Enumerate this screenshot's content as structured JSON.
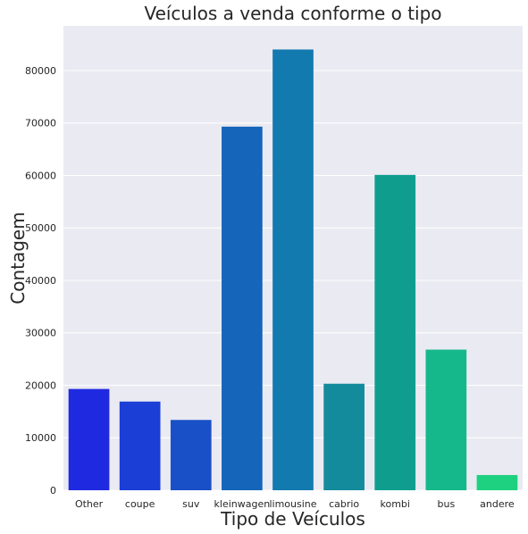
{
  "chart_data": {
    "type": "bar",
    "title": "Veículos a venda conforme o tipo",
    "xlabel": "Tipo de Veículos",
    "ylabel": "Contagem",
    "categories": [
      "Other",
      "coupe",
      "suv",
      "kleinwagen",
      "limousine",
      "cabrio",
      "kombi",
      "bus",
      "andere"
    ],
    "values": [
      19300,
      16900,
      13400,
      69300,
      84000,
      20300,
      60100,
      26800,
      2900
    ],
    "colors": [
      "#1f2ae0",
      "#1b3ed6",
      "#1950c8",
      "#1565bb",
      "#137aaf",
      "#148a9d",
      "#0f9e8e",
      "#15b88a",
      "#1ed180"
    ],
    "ylim": [
      0,
      88500
    ],
    "yticks": [
      0,
      10000,
      20000,
      30000,
      40000,
      50000,
      60000,
      70000,
      80000
    ],
    "ytick_labels": [
      "0",
      "10000",
      "20000",
      "30000",
      "40000",
      "50000",
      "60000",
      "70000",
      "80000"
    ],
    "grid": true,
    "background": "#eaeaf2"
  }
}
